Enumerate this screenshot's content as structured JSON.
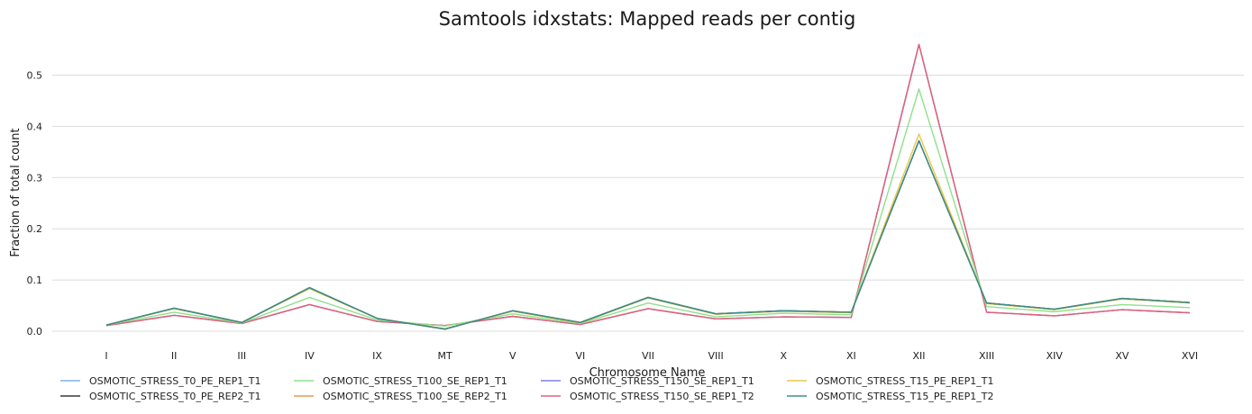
{
  "chart_data": {
    "type": "line",
    "title": "Samtools idxstats: Mapped reads per contig",
    "xlabel": "Chromosome Name",
    "ylabel": "Fraction of total count",
    "categories": [
      "I",
      "II",
      "III",
      "IV",
      "IX",
      "MT",
      "V",
      "VI",
      "VII",
      "VIII",
      "X",
      "XI",
      "XII",
      "XIII",
      "XIV",
      "XV",
      "XVI"
    ],
    "ylim": [
      0,
      0.58
    ],
    "yticks": [
      0.0,
      0.1,
      0.2,
      0.3,
      0.4,
      0.5
    ],
    "ytick_labels": [
      "0.0",
      "0.1",
      "0.2",
      "0.3",
      "0.4",
      "0.5"
    ],
    "grid": true,
    "legend_position": "bottom",
    "series": [
      {
        "name": "OSMOTIC_STRESS_T0_PE_REP1_T1",
        "color": "#7fb3e0",
        "values": [
          0.012,
          0.045,
          0.017,
          0.085,
          0.025,
          0.004,
          0.04,
          0.017,
          0.066,
          0.034,
          0.04,
          0.037,
          0.372,
          0.055,
          0.043,
          0.064,
          0.056
        ]
      },
      {
        "name": "OSMOTIC_STRESS_T0_PE_REP2_T1",
        "color": "#3a3a3a",
        "values": [
          0.012,
          0.045,
          0.017,
          0.085,
          0.025,
          0.004,
          0.04,
          0.017,
          0.066,
          0.034,
          0.04,
          0.037,
          0.372,
          0.055,
          0.043,
          0.064,
          0.056
        ]
      },
      {
        "name": "OSMOTIC_STRESS_T100_SE_REP1_T1",
        "color": "#8fe08a",
        "values": [
          0.012,
          0.037,
          0.016,
          0.066,
          0.022,
          0.01,
          0.034,
          0.015,
          0.055,
          0.028,
          0.035,
          0.032,
          0.473,
          0.048,
          0.038,
          0.052,
          0.046
        ]
      },
      {
        "name": "OSMOTIC_STRESS_T100_SE_REP2_T1",
        "color": "#e89a50",
        "values": [
          0.011,
          0.031,
          0.015,
          0.052,
          0.019,
          0.011,
          0.029,
          0.013,
          0.044,
          0.024,
          0.028,
          0.027,
          0.56,
          0.037,
          0.03,
          0.042,
          0.036
        ]
      },
      {
        "name": "OSMOTIC_STRESS_T150_SE_REP1_T1",
        "color": "#7b80e0",
        "values": [
          0.011,
          0.031,
          0.015,
          0.052,
          0.019,
          0.011,
          0.029,
          0.013,
          0.044,
          0.024,
          0.028,
          0.027,
          0.56,
          0.037,
          0.03,
          0.042,
          0.036
        ]
      },
      {
        "name": "OSMOTIC_STRESS_T150_SE_REP1_T2",
        "color": "#e0607a",
        "values": [
          0.011,
          0.031,
          0.015,
          0.052,
          0.019,
          0.011,
          0.029,
          0.013,
          0.044,
          0.024,
          0.028,
          0.027,
          0.56,
          0.037,
          0.03,
          0.042,
          0.036
        ]
      },
      {
        "name": "OSMOTIC_STRESS_T15_PE_REP1_T1",
        "color": "#e8c84a",
        "values": [
          0.012,
          0.044,
          0.017,
          0.083,
          0.025,
          0.005,
          0.039,
          0.016,
          0.065,
          0.033,
          0.039,
          0.036,
          0.385,
          0.054,
          0.042,
          0.063,
          0.055
        ]
      },
      {
        "name": "OSMOTIC_STRESS_T15_PE_REP1_T2",
        "color": "#3f8f86",
        "values": [
          0.012,
          0.045,
          0.017,
          0.085,
          0.025,
          0.004,
          0.04,
          0.017,
          0.066,
          0.034,
          0.04,
          0.037,
          0.372,
          0.055,
          0.043,
          0.064,
          0.056
        ]
      }
    ]
  }
}
